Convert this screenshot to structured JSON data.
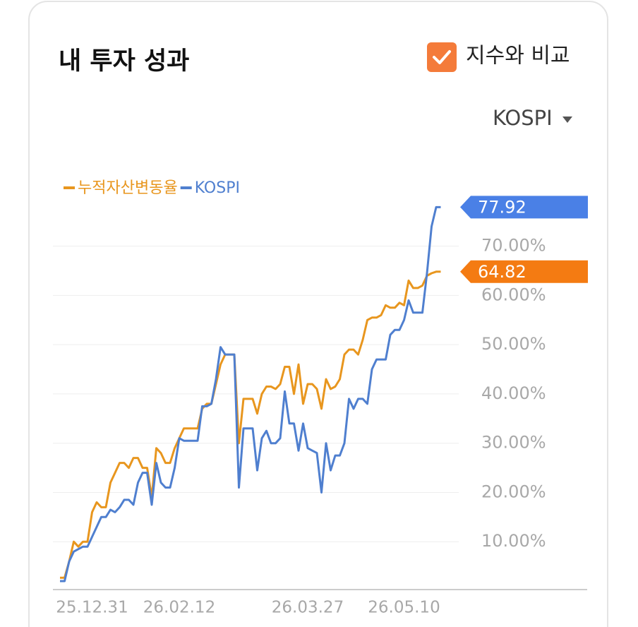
{
  "chart_data": {
    "type": "line",
    "title": "내 투자 성과",
    "categories": [
      null,
      null,
      null,
      null,
      null,
      null,
      null,
      "25.12.31",
      null,
      null,
      null,
      null,
      null,
      null,
      null,
      null,
      null,
      null,
      null,
      null,
      null,
      null,
      null,
      null,
      null,
      null,
      "26.02.12",
      null,
      null,
      null,
      null,
      null,
      null,
      null,
      null,
      null,
      null,
      null,
      null,
      null,
      null,
      null,
      null,
      null,
      null,
      null,
      null,
      null,
      null,
      null,
      null,
      null,
      null,
      null,
      "26.03.27",
      null,
      null,
      null,
      null,
      null,
      null,
      null,
      null,
      null,
      null,
      null,
      null,
      null,
      null,
      null,
      null,
      null,
      null,
      null,
      null,
      "26.05.10",
      null,
      null,
      null,
      null,
      null,
      null,
      null,
      null
    ],
    "series": [
      {
        "name": "누적자산변동율",
        "color": "#e8961e",
        "flag_color": "#f47b12",
        "values": [
          2.7,
          2.7,
          6,
          10,
          9,
          10,
          10,
          16,
          18,
          17,
          17,
          22,
          24,
          26,
          26,
          25,
          27,
          27,
          25,
          25,
          19,
          29,
          28,
          26,
          26,
          29,
          31,
          33,
          33,
          33,
          33,
          37,
          38,
          38,
          42,
          46,
          48,
          48,
          48,
          30,
          39,
          39,
          39,
          36,
          40,
          41.5,
          41.5,
          41,
          42,
          45.5,
          45.5,
          40,
          46,
          38,
          42,
          42,
          41,
          37,
          43,
          41,
          41.5,
          43,
          48,
          49,
          49,
          48,
          51,
          55,
          55.5,
          55.5,
          56,
          58,
          57.5,
          57.5,
          58.5,
          58,
          63,
          61.5,
          61.5,
          62,
          64,
          64.5,
          64.82,
          64.82
        ]
      },
      {
        "name": "KOSPI",
        "color": "#4f7fcf",
        "flag_color": "#4a80e6",
        "values": [
          2,
          2,
          6,
          8,
          8.5,
          9,
          9,
          11,
          13,
          15,
          15,
          16.5,
          16,
          17,
          18.5,
          18.5,
          17.5,
          22,
          24,
          24,
          17.5,
          26,
          22,
          21,
          21,
          25,
          31,
          30.5,
          30.5,
          30.5,
          30.5,
          37.5,
          37.5,
          38,
          43,
          49.5,
          48,
          48,
          48,
          21,
          33,
          33,
          33,
          24.5,
          31,
          32.5,
          30,
          30,
          31,
          40.5,
          34,
          34,
          28.5,
          34,
          29,
          28.5,
          28,
          20,
          30,
          24.5,
          27.5,
          27.5,
          30,
          39,
          37,
          39,
          39,
          38,
          45,
          47,
          47,
          47,
          52,
          53,
          53,
          55,
          59,
          56.5,
          56.5,
          56.5,
          64.5,
          74,
          77.92,
          77.92
        ]
      }
    ],
    "ylim": [
      0,
      87
    ],
    "yticks": [
      {
        "value": 10,
        "label": "10.00%"
      },
      {
        "value": 20,
        "label": "20.00%"
      },
      {
        "value": 30,
        "label": "30.00%"
      },
      {
        "value": 40,
        "label": "40.00%"
      },
      {
        "value": 50,
        "label": "50.00%"
      },
      {
        "value": 60,
        "label": "60.00%"
      },
      {
        "value": 70,
        "label": "70.00%"
      }
    ],
    "grid": true
  },
  "ui": {
    "compare_label": "지수와 비교",
    "compare_checked": true,
    "index_selector": "KOSPI"
  }
}
